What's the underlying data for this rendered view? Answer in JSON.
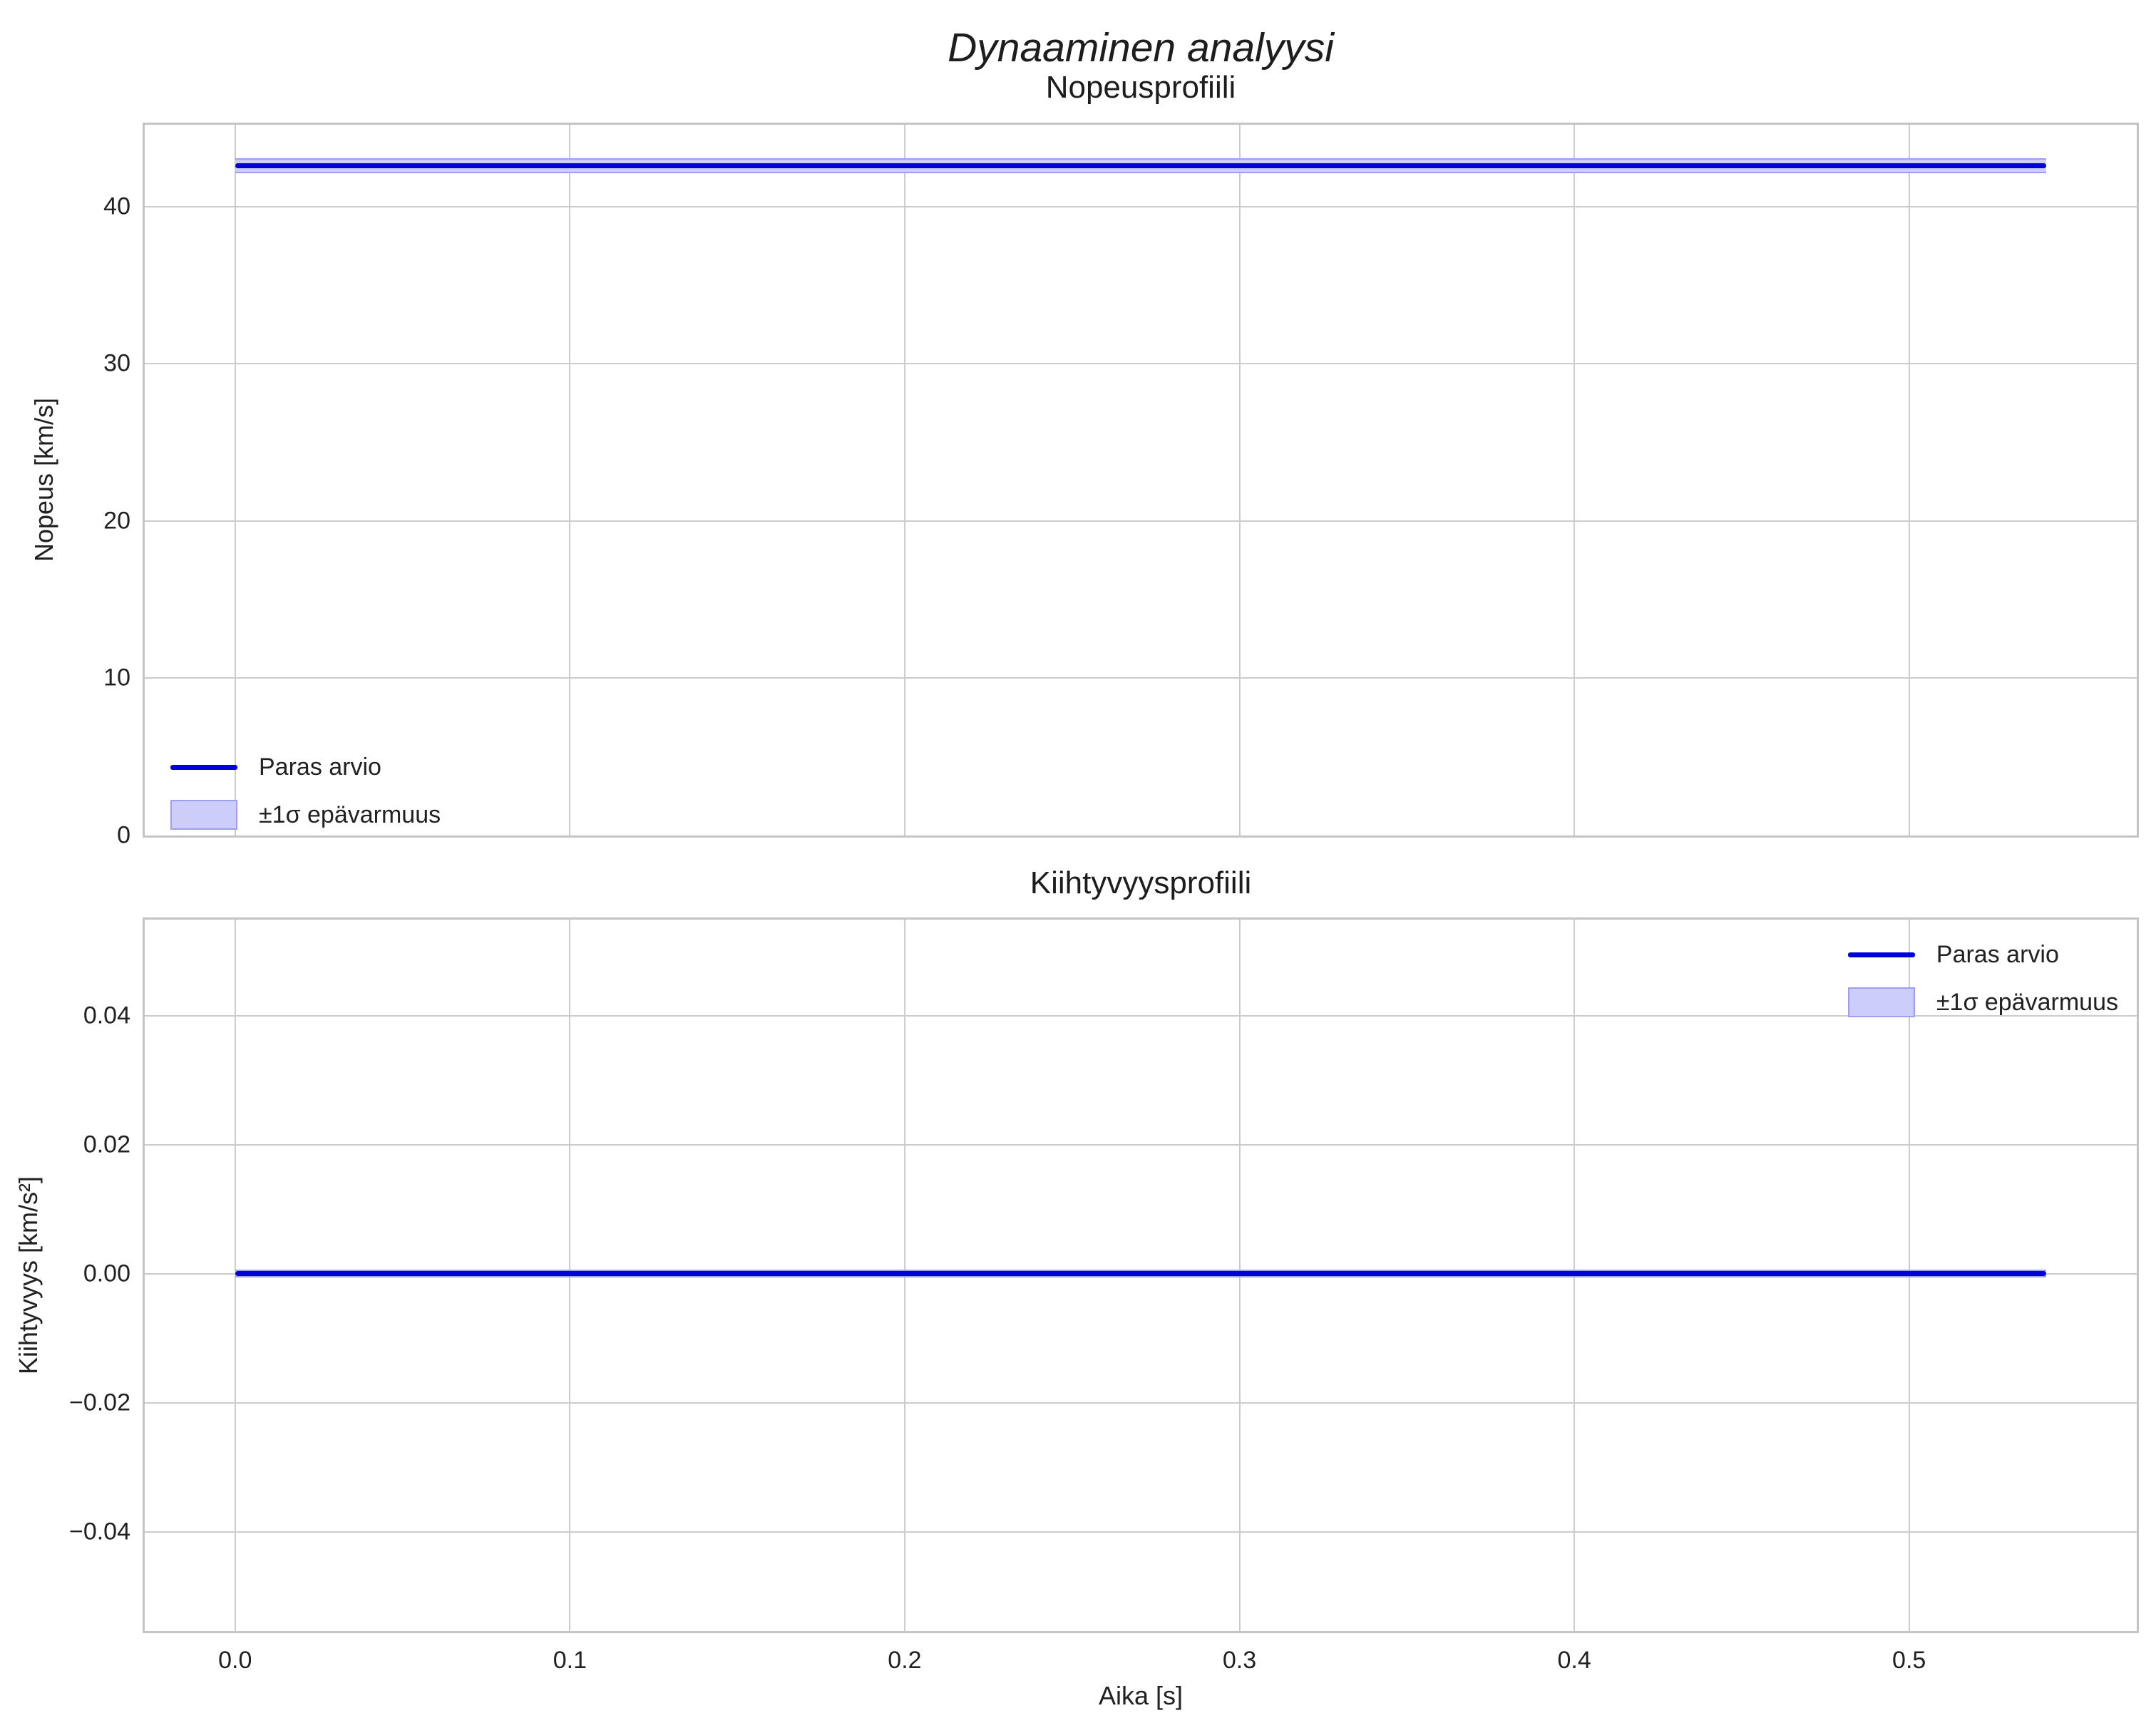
{
  "figure": {
    "title": "Dynaaminen analyysi"
  },
  "legend": {
    "line_label": "Paras arvio",
    "band_label": "±1σ epävarmuus"
  },
  "colors": {
    "line": "#0000d9",
    "band-fill": "#cdcdf9",
    "band-edge": "#9e9ef0",
    "grid": "#cccccc",
    "spine": "#c4c4c4",
    "text": "#212121"
  },
  "chart_data": [
    {
      "type": "line",
      "title": "Nopeusprofiili",
      "xlabel": "",
      "ylabel": "Nopeus [km/s]",
      "xlim": [
        -0.027,
        0.568
      ],
      "ylim": [
        0,
        45.2
      ],
      "xticks": [
        0.0,
        0.1,
        0.2,
        0.3,
        0.4,
        0.5
      ],
      "xtick_labels": [
        "0.0",
        "0.1",
        "0.2",
        "0.3",
        "0.4",
        "0.5"
      ],
      "show_xtick_labels": false,
      "yticks": [
        0,
        10,
        20,
        30,
        40
      ],
      "ytick_labels": [
        "0",
        "10",
        "20",
        "30",
        "40"
      ],
      "grid": true,
      "legend_position": "lower-left",
      "series": [
        {
          "name": "Paras arvio",
          "x_range": [
            0.0,
            0.541
          ],
          "value": 42.6,
          "sigma": 0.38,
          "band_name": "±1σ epävarmuus"
        }
      ]
    },
    {
      "type": "line",
      "title": "Kiihtyvyysprofiili",
      "xlabel": "Aika [s]",
      "ylabel": "Kiihtyvyys [km/s²]",
      "xlim": [
        -0.027,
        0.568
      ],
      "ylim": [
        -0.0554,
        0.0549
      ],
      "xticks": [
        0.0,
        0.1,
        0.2,
        0.3,
        0.4,
        0.5
      ],
      "xtick_labels": [
        "0.0",
        "0.1",
        "0.2",
        "0.3",
        "0.4",
        "0.5"
      ],
      "show_xtick_labels": true,
      "yticks": [
        -0.04,
        -0.02,
        0.0,
        0.02,
        0.04
      ],
      "ytick_labels": [
        "−0.04",
        "−0.02",
        "0.00",
        "0.02",
        "0.04"
      ],
      "grid": true,
      "legend_position": "upper-right",
      "series": [
        {
          "name": "Paras arvio",
          "x_range": [
            0.0,
            0.541
          ],
          "value": 0.0,
          "sigma": 0.0004,
          "band_name": "±1σ epävarmuus"
        }
      ]
    }
  ]
}
